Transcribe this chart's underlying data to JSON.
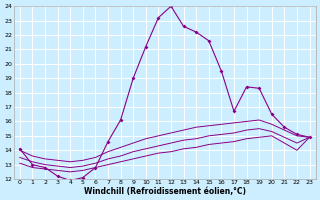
{
  "xlabel": "Windchill (Refroidissement éolien,°C)",
  "bg_color": "#cceeff",
  "grid_color": "#ffffff",
  "line_color": "#880088",
  "hours": [
    0,
    1,
    2,
    3,
    4,
    5,
    6,
    7,
    8,
    9,
    10,
    11,
    12,
    13,
    14,
    15,
    16,
    17,
    18,
    19,
    20,
    21,
    22,
    23
  ],
  "temp": [
    14.1,
    13.0,
    12.8,
    12.2,
    11.9,
    12.1,
    12.8,
    14.6,
    16.1,
    19.0,
    21.2,
    23.2,
    24.0,
    22.6,
    22.2,
    21.6,
    19.5,
    16.7,
    18.4,
    18.3,
    16.5,
    15.6,
    15.1,
    14.9
  ],
  "line2": [
    13.1,
    12.8,
    12.7,
    12.6,
    12.5,
    12.6,
    12.8,
    13.0,
    13.2,
    13.4,
    13.6,
    13.8,
    13.9,
    14.1,
    14.2,
    14.4,
    14.5,
    14.6,
    14.8,
    14.9,
    15.0,
    14.5,
    14.0,
    14.9
  ],
  "line3": [
    13.5,
    13.2,
    13.0,
    12.9,
    12.8,
    12.9,
    13.1,
    13.4,
    13.6,
    13.9,
    14.1,
    14.3,
    14.5,
    14.7,
    14.8,
    15.0,
    15.1,
    15.2,
    15.4,
    15.5,
    15.3,
    14.9,
    14.5,
    14.9
  ],
  "line4": [
    14.0,
    13.6,
    13.4,
    13.3,
    13.2,
    13.3,
    13.5,
    13.9,
    14.2,
    14.5,
    14.8,
    15.0,
    15.2,
    15.4,
    15.6,
    15.7,
    15.8,
    15.9,
    16.0,
    16.1,
    15.8,
    15.4,
    15.0,
    14.9
  ],
  "ylim": [
    12,
    24
  ],
  "yticks": [
    12,
    13,
    14,
    15,
    16,
    17,
    18,
    19,
    20,
    21,
    22,
    23,
    24
  ],
  "xlabel_fontsize": 5.5,
  "tick_fontsize": 4.5
}
